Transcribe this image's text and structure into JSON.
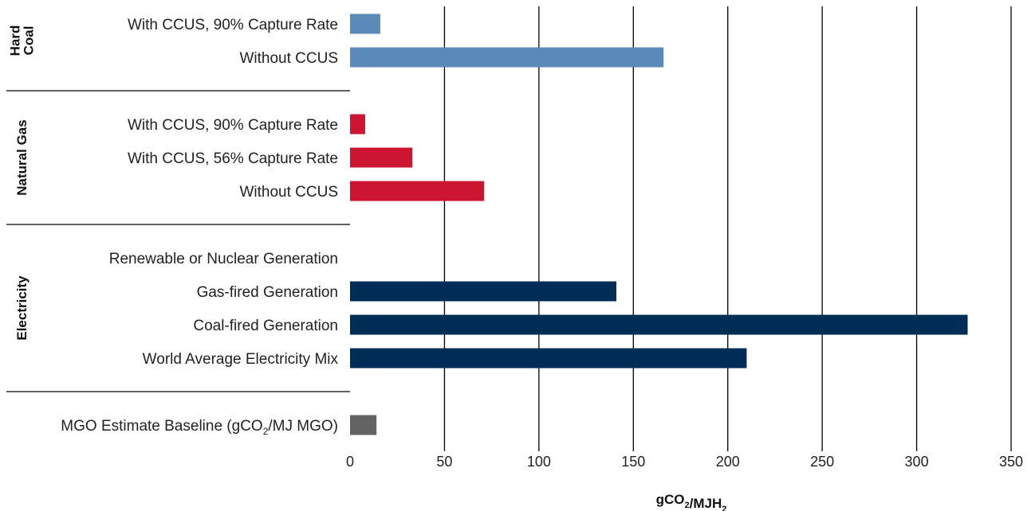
{
  "chart_data": {
    "type": "bar",
    "orientation": "horizontal",
    "xlabel": "gCO₂/MJH₂",
    "xlim": [
      0,
      350
    ],
    "xticks": [
      0,
      50,
      100,
      150,
      200,
      250,
      300,
      350
    ],
    "grid": "vertical",
    "groups": [
      {
        "name": "Hard Coal",
        "label_lines": [
          "Hard",
          "Coal"
        ],
        "color": "#5b8ab8",
        "items": [
          {
            "label": "With CCUS, 90% Capture Rate",
            "value": 16
          },
          {
            "label": "Without CCUS",
            "value": 166
          }
        ]
      },
      {
        "name": "Natural Gas",
        "label_lines": [
          "Natural Gas"
        ],
        "color": "#cc1530",
        "items": [
          {
            "label": "With CCUS, 90% Capture Rate",
            "value": 8
          },
          {
            "label": "With CCUS, 56% Capture Rate",
            "value": 33
          },
          {
            "label": "Without CCUS",
            "value": 71
          }
        ]
      },
      {
        "name": "Electricity",
        "label_lines": [
          "Electricity"
        ],
        "color": "#002d56",
        "items": [
          {
            "label": "Renewable or Nuclear Generation",
            "value": 0
          },
          {
            "label": "Gas-fired Generation",
            "value": 141
          },
          {
            "label": "Coal-fired Generation",
            "value": 327
          },
          {
            "label": "World Average Electricity Mix",
            "value": 210
          }
        ]
      },
      {
        "name": "",
        "label_lines": [],
        "color": "#636363",
        "items": [
          {
            "label": "MGO Estimate Baseline (gCO₂/MJ MGO)",
            "value": 14
          }
        ]
      }
    ]
  }
}
